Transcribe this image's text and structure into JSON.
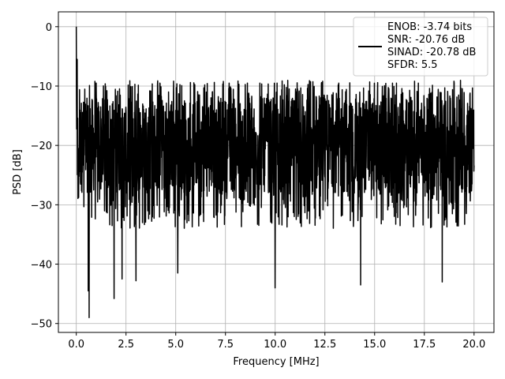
{
  "chart_data": {
    "type": "line",
    "xlabel": "Frequency [MHz]",
    "ylabel": "PSD [dB]",
    "xlim": [
      -0.9,
      21.0
    ],
    "ylim": [
      -51.5,
      2.5
    ],
    "x_ticks": [
      0.0,
      2.5,
      5.0,
      7.5,
      10.0,
      12.5,
      15.0,
      17.5,
      20.0
    ],
    "x_tick_labels": [
      "0.0",
      "2.5",
      "5.0",
      "7.5",
      "10.0",
      "12.5",
      "15.0",
      "17.5",
      "20.0"
    ],
    "y_ticks": [
      0,
      -10,
      -20,
      -30,
      -40,
      -50
    ],
    "y_tick_labels": [
      "0",
      "−10",
      "−20",
      "−30",
      "−40",
      "−50"
    ],
    "grid": true,
    "legend_position": "top-right",
    "series_color": "#000000",
    "series": [
      {
        "x_start": 0.0,
        "x_end": 20.0,
        "noise_floor_range": [
          -49,
          -9
        ],
        "typical_band": [
          -28,
          -12
        ],
        "peaks": [
          {
            "x": 0.0,
            "y": 0.0
          },
          {
            "x": 0.05,
            "y": -5.5
          }
        ],
        "dips": [
          {
            "x": 0.65,
            "y": -49
          },
          {
            "x": 0.6,
            "y": -44.5
          },
          {
            "x": 1.9,
            "y": -45.8
          },
          {
            "x": 2.3,
            "y": -42.5
          },
          {
            "x": 3.0,
            "y": -42.8
          },
          {
            "x": 5.1,
            "y": -41.5
          },
          {
            "x": 10.0,
            "y": -44.0
          },
          {
            "x": 14.3,
            "y": -43.5
          },
          {
            "x": 18.4,
            "y": -43.0
          }
        ]
      }
    ],
    "legend": {
      "lines": [
        "ENOB: -3.74 bits",
        "SNR: -20.76 dB",
        "SINAD: -20.78 dB",
        "SFDR: 5.5"
      ]
    }
  }
}
